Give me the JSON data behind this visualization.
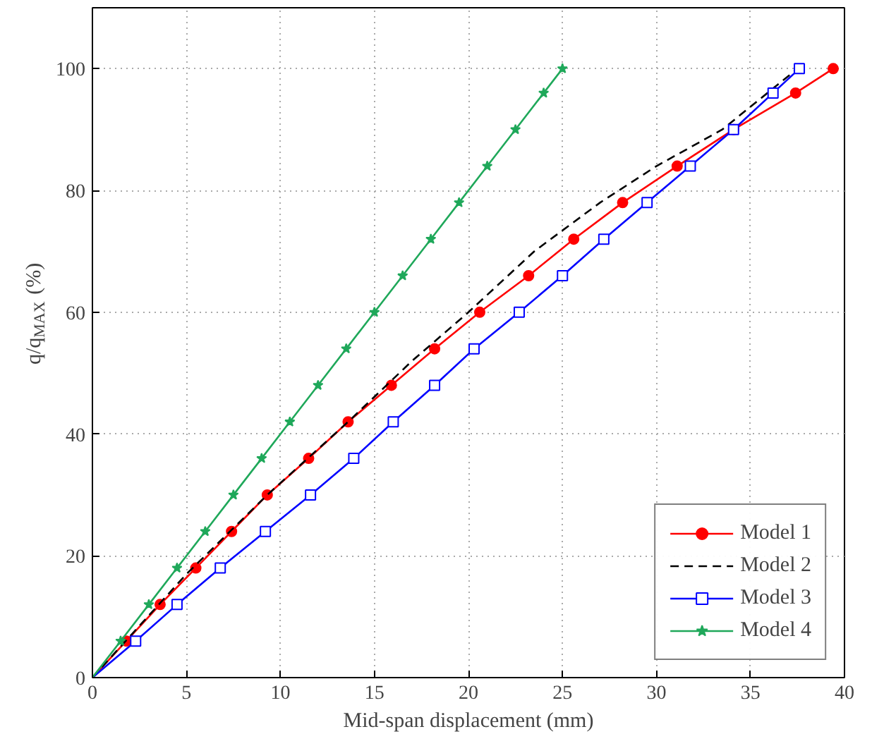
{
  "chart_data": {
    "type": "line",
    "xlabel": "Mid-span displacement (mm)",
    "ylabel": "q/q$_{MAX}$ (%)",
    "xlim": [
      0,
      40
    ],
    "ylim": [
      0,
      110
    ],
    "xticks": [
      0,
      5,
      10,
      15,
      20,
      25,
      30,
      35,
      40
    ],
    "yticks": [
      0,
      20,
      40,
      60,
      80,
      100
    ],
    "grid": true,
    "legend": "bottom right",
    "series": [
      {
        "name": "Model 1",
        "color": "#ff0000",
        "marker": "circle",
        "line_style": "solid",
        "x": [
          0,
          1.8,
          3.6,
          5.5,
          7.4,
          9.3,
          11.5,
          13.6,
          15.9,
          18.2,
          20.6,
          23.2,
          25.6,
          28.2,
          31.1,
          34.1,
          37.4,
          39.4
        ],
        "values": [
          0,
          6,
          12,
          18,
          24,
          30,
          36,
          42,
          48,
          54,
          60,
          66,
          72,
          78,
          84,
          90,
          96,
          100
        ]
      },
      {
        "name": "Model 2",
        "color": "#000000",
        "marker": "none",
        "line_style": "dashed",
        "x": [
          0,
          5,
          9.3,
          13.6,
          17,
          20,
          23.5,
          27,
          30,
          33.5,
          37.5
        ],
        "values": [
          0,
          17,
          30,
          42,
          52,
          60,
          70,
          78,
          84,
          90,
          100
        ]
      },
      {
        "name": "Model 3",
        "color": "#0000ff",
        "marker": "square",
        "line_style": "solid",
        "x": [
          0,
          2.3,
          4.5,
          6.8,
          9.2,
          11.6,
          13.9,
          16.0,
          18.2,
          20.3,
          22.7,
          25.0,
          27.2,
          29.5,
          31.8,
          34.1,
          36.2,
          37.6
        ],
        "values": [
          0,
          6,
          12,
          18,
          24,
          30,
          36,
          42,
          48,
          54,
          60,
          66,
          72,
          78,
          84,
          90,
          96,
          100
        ]
      },
      {
        "name": "Model 4",
        "color": "#1fa85a",
        "marker": "star",
        "line_style": "solid",
        "x": [
          0,
          1.5,
          3,
          4.5,
          6,
          7.5,
          9,
          10.5,
          12,
          13.5,
          15,
          16.5,
          18,
          19.5,
          21,
          22.5,
          24,
          25
        ],
        "values": [
          0,
          6,
          12,
          18,
          24,
          30,
          36,
          42,
          48,
          54,
          60,
          66,
          72,
          78,
          84,
          90,
          96,
          100
        ]
      }
    ]
  }
}
